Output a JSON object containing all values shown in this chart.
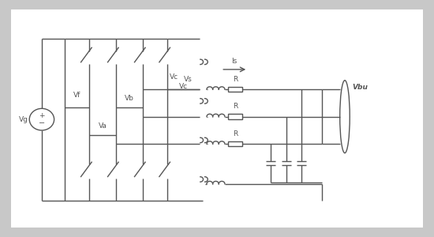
{
  "bg_color": "#c8c8c8",
  "panel_color": "#ffffff",
  "line_color": "#555555",
  "line_width": 1.0,
  "labels": {
    "Vg": "Vg",
    "Vf": "Vf",
    "Va": "Va",
    "Vb": "Vb",
    "Vc": "Vc",
    "Vs": "Vs",
    "Is": "Is",
    "R": "R",
    "Vbu": "Vbu"
  },
  "font_size": 6.5
}
